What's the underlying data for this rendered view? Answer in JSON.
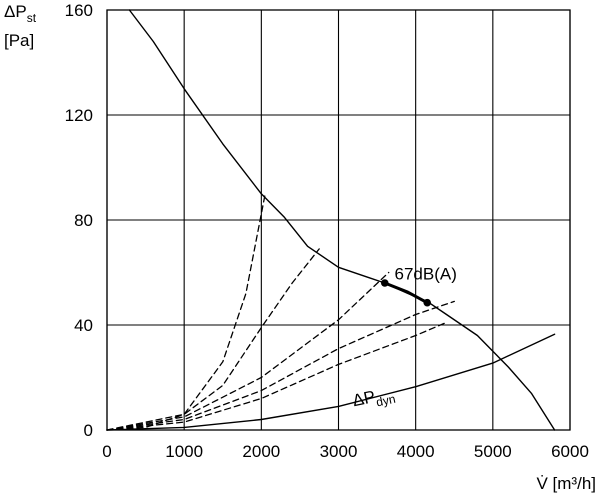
{
  "chart_data": {
    "type": "line",
    "ylabel_main": "ΔP",
    "ylabel_sub": "st",
    "ylabel_unit": "[Pa]",
    "xlabel": "V̇ [m³/h]",
    "xlim": [
      0,
      6000
    ],
    "ylim": [
      0,
      160
    ],
    "x_ticks": [
      0,
      1000,
      2000,
      3000,
      4000,
      5000,
      6000
    ],
    "y_ticks": [
      0,
      40,
      80,
      120,
      160
    ],
    "grid": true,
    "series": [
      {
        "style": "solid",
        "points": [
          [
            290,
            160
          ],
          [
            600,
            148
          ],
          [
            1000,
            130
          ],
          [
            1500,
            109
          ],
          [
            2000,
            90
          ],
          [
            2300,
            81
          ],
          [
            2600,
            70
          ],
          [
            3000,
            62
          ],
          [
            3400,
            58
          ],
          [
            3600,
            56
          ],
          [
            3900,
            52
          ],
          [
            4150,
            49
          ],
          [
            4400,
            44
          ],
          [
            4800,
            36
          ],
          [
            5200,
            24
          ],
          [
            5500,
            14
          ],
          [
            5800,
            0
          ]
        ]
      },
      {
        "name": "ΔP",
        "name_sub": "dyn",
        "style": "solid",
        "points": [
          [
            0,
            0
          ],
          [
            1000,
            1
          ],
          [
            2000,
            4
          ],
          [
            3000,
            9
          ],
          [
            4000,
            16.5
          ],
          [
            5000,
            25.5
          ],
          [
            5800,
            36.5
          ]
        ]
      },
      {
        "style": "dashed",
        "points": [
          [
            0,
            0
          ],
          [
            500,
            1
          ],
          [
            1000,
            6
          ],
          [
            1500,
            26
          ],
          [
            1800,
            52
          ],
          [
            2050,
            90
          ]
        ]
      },
      {
        "style": "dashed",
        "points": [
          [
            0,
            0
          ],
          [
            1000,
            6
          ],
          [
            1500,
            17
          ],
          [
            2000,
            39
          ],
          [
            2400,
            56
          ],
          [
            2750,
            69
          ]
        ]
      },
      {
        "style": "dashed",
        "points": [
          [
            0,
            0
          ],
          [
            1000,
            5
          ],
          [
            2000,
            20
          ],
          [
            3000,
            42
          ],
          [
            3650,
            60
          ]
        ]
      },
      {
        "style": "dashed",
        "points": [
          [
            0,
            0
          ],
          [
            1000,
            4
          ],
          [
            2000,
            15
          ],
          [
            3000,
            31
          ],
          [
            4000,
            44
          ],
          [
            4500,
            49
          ]
        ]
      },
      {
        "style": "dashed",
        "points": [
          [
            0,
            0
          ],
          [
            1000,
            3
          ],
          [
            2000,
            12
          ],
          [
            3000,
            25
          ],
          [
            4000,
            36
          ],
          [
            4400,
            41
          ]
        ]
      },
      {
        "style": "bold",
        "points": [
          [
            3600,
            56
          ],
          [
            3900,
            52.5
          ],
          [
            4150,
            48.5
          ]
        ]
      }
    ],
    "annotations": [
      {
        "text": "67dB(A)",
        "x": 3700,
        "y": 55
      }
    ]
  }
}
